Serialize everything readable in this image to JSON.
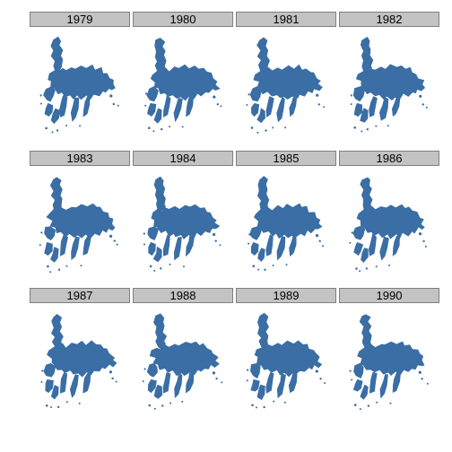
{
  "panels": [
    {
      "year": "1979",
      "variant": 0
    },
    {
      "year": "1980",
      "variant": 1
    },
    {
      "year": "1981",
      "variant": 2
    },
    {
      "year": "1982",
      "variant": 3
    },
    {
      "year": "1983",
      "variant": 4
    },
    {
      "year": "1984",
      "variant": 5
    },
    {
      "year": "1985",
      "variant": 6
    },
    {
      "year": "1986",
      "variant": 7
    },
    {
      "year": "1987",
      "variant": 8
    },
    {
      "year": "1988",
      "variant": 9
    },
    {
      "year": "1989",
      "variant": 10
    },
    {
      "year": "1990",
      "variant": 11
    }
  ],
  "colors": {
    "ice": "#3a6ea5",
    "strip_bg": "#c3c3c3",
    "strip_border": "#7f7f7f",
    "background": "#ffffff"
  }
}
